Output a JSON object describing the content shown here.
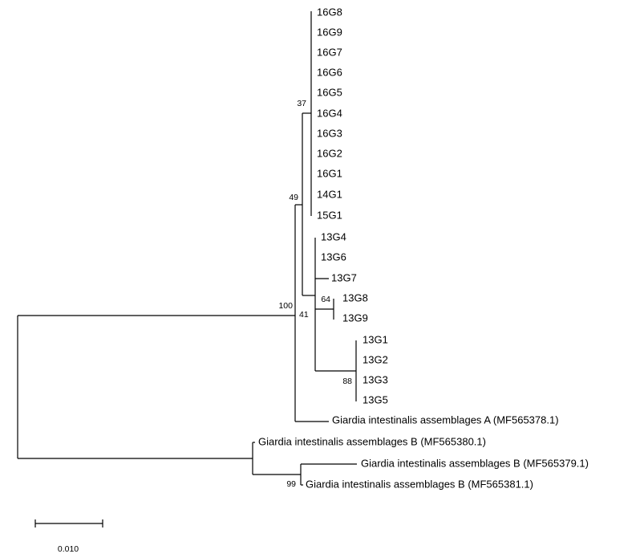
{
  "leaves": [
    "16G8",
    "16G9",
    "16G7",
    "16G6",
    "16G5",
    "16G4",
    "16G3",
    "16G2",
    "16G1",
    "14G1",
    "15G1",
    "13G4",
    "13G6",
    "13G7",
    "13G8",
    "13G9",
    "13G1",
    "13G2",
    "13G3",
    "13G5",
    "Giardia intestinalis assemblages A (MF565378.1)",
    "Giardia intestinalis assemblages B (MF565380.1)",
    "Giardia intestinalis assemblages B (MF565379.1)",
    "Giardia intestinalis assemblages B (MF565381.1)"
  ],
  "bootstrap": [
    37,
    49,
    100,
    41,
    64,
    88,
    99
  ],
  "scale_bar": {
    "label": "0.010"
  }
}
